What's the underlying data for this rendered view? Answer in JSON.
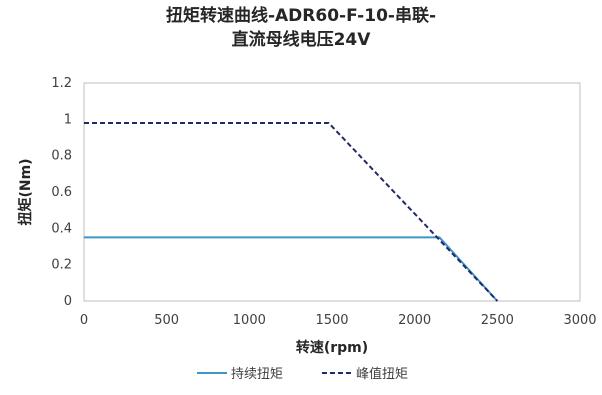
{
  "chart_data": {
    "type": "line",
    "title_lines": [
      "扭矩转速曲线-ADR60-F-10-串联-",
      "直流母线电压24V"
    ],
    "xlabel": "转速(rpm)",
    "ylabel": "扭矩(Nm)",
    "xlim": [
      0,
      3000
    ],
    "ylim": [
      0,
      1.2
    ],
    "xticks": [
      0,
      500,
      1000,
      1500,
      2000,
      2500,
      3000
    ],
    "yticks": [
      0,
      0.2,
      0.4,
      0.6,
      0.8,
      1,
      1.2
    ],
    "xtick_labels": [
      "0",
      "500",
      "1000",
      "1500",
      "2000",
      "2500",
      "3000"
    ],
    "ytick_labels": [
      "0",
      "0.2",
      "0.4",
      "0.6",
      "0.8",
      "1",
      "1.2"
    ],
    "grid": false,
    "legend_position": "bottom",
    "series": [
      {
        "name": "持续扭矩",
        "style": "solid",
        "color": "#3c96c8",
        "x": [
          0,
          2150,
          2500
        ],
        "y": [
          0.35,
          0.35,
          0
        ]
      },
      {
        "name": "峰值扭矩",
        "style": "dashed",
        "color": "#1f2a6b",
        "x": [
          0,
          1480,
          2500
        ],
        "y": [
          0.98,
          0.98,
          0
        ]
      }
    ]
  }
}
